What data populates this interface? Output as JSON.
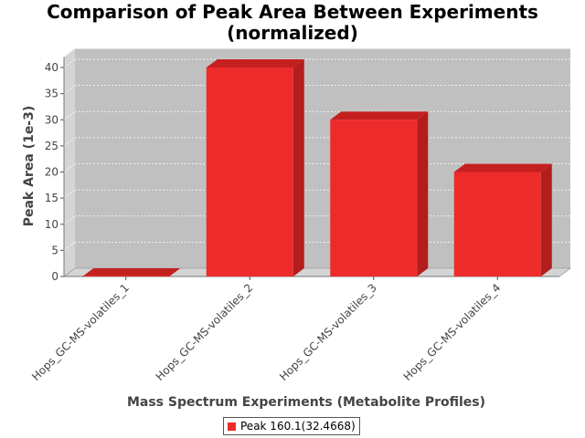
{
  "chart_data": {
    "type": "bar",
    "title": [
      "Comparison of Peak Area Between Experiments",
      "(normalized)"
    ],
    "xlabel": "Mass Spectrum Experiments (Metabolite Profiles)",
    "ylabel": "Peak Area (1e-3)",
    "categories": [
      "Hops_GC-MS-volatiles_1",
      "Hops_GC-MS-volatiles_2",
      "Hops_GC-MS-volatiles_3",
      "Hops_GC-MS-volatiles_4"
    ],
    "series": [
      {
        "name": "Peak 160.1(32.4668)",
        "values": [
          0,
          40,
          30,
          20
        ]
      }
    ],
    "ylim": [
      0,
      42
    ],
    "yticks": [
      0,
      5,
      10,
      15,
      20,
      25,
      30,
      35,
      40
    ],
    "grid": true,
    "legend_position": "bottom",
    "colors": {
      "bar": "#ee2b2b",
      "bar_top": "#c42020",
      "bar_side": "#b21d1d",
      "plot_bg": "#c0c0c0",
      "wall": "#d4d4d4"
    }
  }
}
